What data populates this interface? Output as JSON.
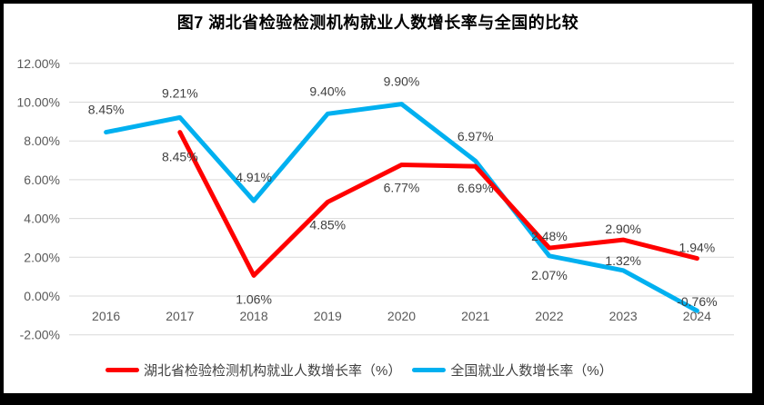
{
  "title": "图7 湖北省检验检测机构就业人数增长率与全国的比较",
  "colors": {
    "hubei_line": "#FF0000",
    "national_line": "#00B0F0",
    "gridline": "#D9D9D9",
    "tick_text": "#595959",
    "data_label_text": "#404040",
    "frame": "#000000",
    "background": "#FFFFFF"
  },
  "chart_data": {
    "type": "line",
    "title": "图7 湖北省检验检测机构就业人数增长率与全国的比较",
    "categories": [
      "2016",
      "2017",
      "2018",
      "2019",
      "2020",
      "2021",
      "2022",
      "2023",
      "2024"
    ],
    "series": [
      {
        "name": "湖北省检验检测机构就业人数增长率（%）",
        "color": "#FF0000",
        "values": [
          null,
          8.45,
          1.06,
          4.85,
          6.77,
          6.69,
          2.48,
          2.9,
          1.94
        ],
        "labels": [
          "",
          "8.45%",
          "1.06%",
          "4.85%",
          "6.77%",
          "6.69%",
          "2.48%",
          "2.90%",
          "1.94%"
        ],
        "label_dy": [
          0,
          32,
          31,
          30,
          30,
          29,
          -8,
          -7,
          -7
        ]
      },
      {
        "name": "全国就业人数增长率（%）",
        "color": "#00B0F0",
        "values": [
          8.45,
          9.21,
          4.91,
          9.4,
          9.9,
          6.97,
          2.07,
          1.32,
          -0.76
        ],
        "labels": [
          "8.45%",
          "9.21%",
          "4.91%",
          "9.40%",
          "9.90%",
          "6.97%",
          "2.07%",
          "1.32%",
          "-0.76%"
        ],
        "label_dy": [
          -20,
          -22,
          -21,
          -20,
          -20,
          -22,
          26,
          -6,
          -5
        ]
      }
    ],
    "y_axis": {
      "ticks": [
        "12.00%",
        "10.00%",
        "8.00%",
        "6.00%",
        "4.00%",
        "2.00%",
        "0.00%",
        "-2.00%"
      ],
      "min": -2,
      "max": 12,
      "step": 2
    },
    "grid": true,
    "legend_position": "bottom"
  }
}
